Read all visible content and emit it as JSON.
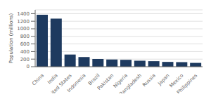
{
  "chart_data": {
    "type": "bar",
    "ylabel": "Population (millions)",
    "categories": [
      "China",
      "India",
      "United States",
      "Indonesia",
      "Brazil",
      "Pakistan",
      "Nigeria",
      "Bangladesh",
      "Russia",
      "Japan",
      "Mexico",
      "Philippines"
    ],
    "values": [
      1369,
      1270,
      321,
      255,
      204,
      190,
      182,
      158,
      146,
      127,
      121,
      101
    ],
    "color": "#1e3a5f",
    "ylim": [
      0,
      1500
    ],
    "yticks": [
      0,
      200,
      400,
      600,
      800,
      1000,
      1200,
      1400
    ],
    "grid": true
  }
}
